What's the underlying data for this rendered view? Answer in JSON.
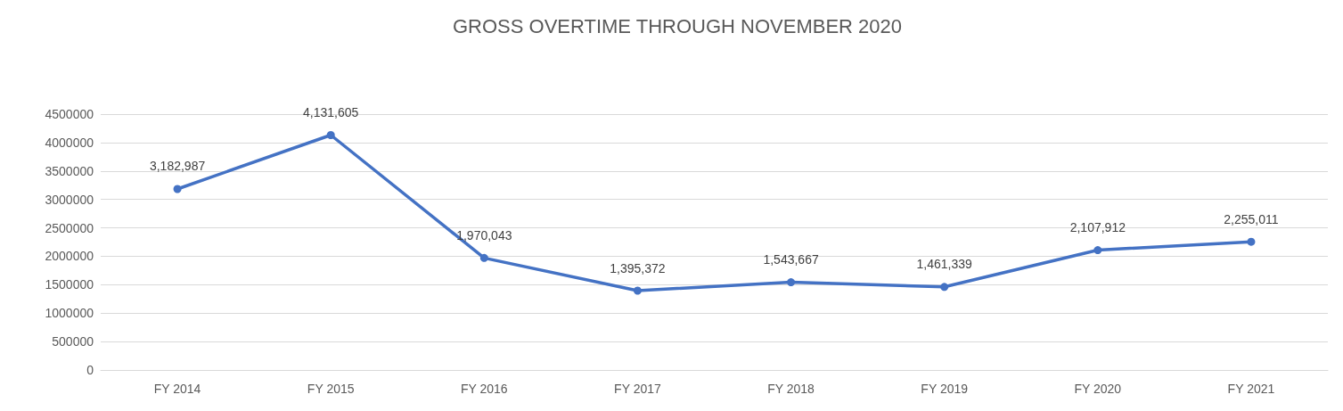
{
  "chart_data": {
    "type": "line",
    "title": "GROSS OVERTIME THROUGH NOVEMBER 2020",
    "categories": [
      "FY 2014",
      "FY 2015",
      "FY 2016",
      "FY 2017",
      "FY 2018",
      "FY 2019",
      "FY 2020",
      "FY 2021"
    ],
    "series": [
      {
        "color": "#4472c4",
        "values": [
          3182987,
          4131605,
          1970043,
          1395372,
          1543667,
          1461339,
          2107912,
          2255011
        ],
        "value_labels": [
          "3,182,987",
          "4,131,605",
          "1,970,043",
          "1,395,372",
          "1,543,667",
          "1,461,339",
          "2,107,912",
          "2,255,011"
        ]
      }
    ],
    "ylim": [
      0,
      4500000
    ],
    "yticks": [
      0,
      500000,
      1000000,
      1500000,
      2000000,
      2500000,
      3000000,
      3500000,
      4000000,
      4500000
    ],
    "grid": "y",
    "marker": "circle",
    "line_style": "solid"
  }
}
